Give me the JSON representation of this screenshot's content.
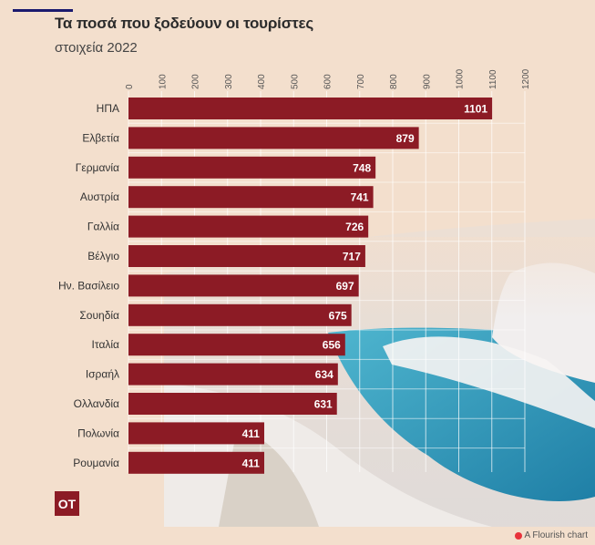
{
  "header": {
    "title": "Τα ποσά που ξοδεύουν οι τουρίστες",
    "subtitle": "στοιχεία 2022"
  },
  "logo": {
    "text": "OT"
  },
  "credit": {
    "text": "A Flourish chart",
    "icon": "flourish-icon"
  },
  "colors": {
    "bar": "#8c1b25",
    "background": "#f3dfcd",
    "accent": "#1a1a6e"
  },
  "chart_data": {
    "type": "bar",
    "orientation": "horizontal",
    "categories": [
      "ΗΠΑ",
      "Ελβετία",
      "Γερμανία",
      "Αυστρία",
      "Γαλλία",
      "Βέλγιο",
      "Ην. Βασίλειο",
      "Σουηδία",
      "Ιταλία",
      "Ισραήλ",
      "Ολλανδία",
      "Πολωνία",
      "Ρουμανία"
    ],
    "values": [
      1101,
      879,
      748,
      741,
      726,
      717,
      697,
      675,
      656,
      634,
      631,
      411,
      411
    ],
    "xlim": [
      0,
      1200
    ],
    "xticks": [
      0,
      100,
      200,
      300,
      400,
      500,
      600,
      700,
      800,
      900,
      1000,
      1100,
      1200
    ],
    "axis_position": "top",
    "grid": true,
    "data_labels": true
  }
}
